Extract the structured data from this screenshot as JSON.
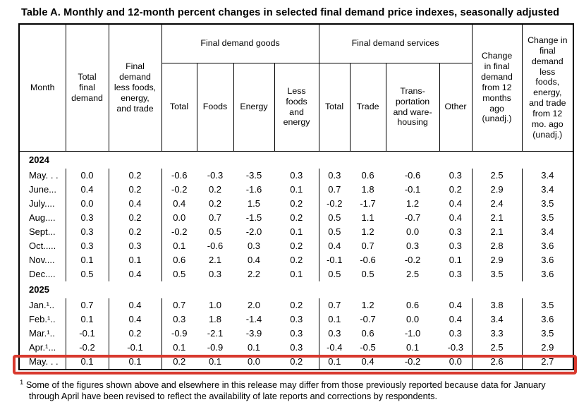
{
  "title": "Table A. Monthly and 12-month percent changes in selected final demand price indexes, seasonally adjusted",
  "colors": {
    "highlight_border": "#d8392e"
  },
  "table": {
    "header": {
      "month": "Month",
      "total_final_demand": "Total final demand",
      "less_fet": "Final demand less foods, energy, and trade",
      "goods": {
        "label": "Final demand goods",
        "sub": [
          "Total",
          "Foods",
          "Energy",
          "Less foods and energy"
        ]
      },
      "services": {
        "label": "Final demand services",
        "sub": [
          "Total",
          "Trade",
          "Trans-portation and ware-housing",
          "Other"
        ]
      },
      "change_12mo": "Change in final demand from 12 months ago (unadj.)",
      "change_less_12mo": "Change in final demand less foods, energy, and trade from 12 mo. ago (unadj.)"
    },
    "sections": [
      {
        "year": "2024",
        "rows": [
          {
            "month": "May. . .",
            "values": [
              "0.0",
              "0.2",
              "-0.6",
              "-0.3",
              "-3.5",
              "0.3",
              "0.3",
              "0.6",
              "-0.6",
              "0.3",
              "2.5",
              "3.4"
            ],
            "highlighted": false
          },
          {
            "month": "June...",
            "values": [
              "0.4",
              "0.2",
              "-0.2",
              "0.2",
              "-1.6",
              "0.1",
              "0.7",
              "1.8",
              "-0.1",
              "0.2",
              "2.9",
              "3.4"
            ],
            "highlighted": false
          },
          {
            "month": "July....",
            "values": [
              "0.0",
              "0.4",
              "0.4",
              "0.2",
              "1.5",
              "0.2",
              "-0.2",
              "-1.7",
              "1.2",
              "0.4",
              "2.4",
              "3.5"
            ],
            "highlighted": false
          },
          {
            "month": "Aug....",
            "values": [
              "0.3",
              "0.2",
              "0.0",
              "0.7",
              "-1.5",
              "0.2",
              "0.5",
              "1.1",
              "-0.7",
              "0.4",
              "2.1",
              "3.5"
            ],
            "highlighted": false
          },
          {
            "month": "Sept...",
            "values": [
              "0.3",
              "0.2",
              "-0.2",
              "0.5",
              "-2.0",
              "0.1",
              "0.5",
              "1.2",
              "0.0",
              "0.3",
              "2.1",
              "3.4"
            ],
            "highlighted": false
          },
          {
            "month": "Oct.....",
            "values": [
              "0.3",
              "0.3",
              "0.1",
              "-0.6",
              "0.3",
              "0.2",
              "0.4",
              "0.7",
              "0.3",
              "0.3",
              "2.8",
              "3.6"
            ],
            "highlighted": false
          },
          {
            "month": "Nov....",
            "values": [
              "0.1",
              "0.1",
              "0.6",
              "2.1",
              "0.4",
              "0.2",
              "-0.1",
              "-0.6",
              "-0.2",
              "0.1",
              "2.9",
              "3.6"
            ],
            "highlighted": false
          },
          {
            "month": "Dec....",
            "values": [
              "0.5",
              "0.4",
              "0.5",
              "0.3",
              "2.2",
              "0.1",
              "0.5",
              "0.5",
              "2.5",
              "0.3",
              "3.5",
              "3.6"
            ],
            "highlighted": false
          }
        ]
      },
      {
        "year": "2025",
        "rows": [
          {
            "month": "Jan.¹..",
            "values": [
              "0.7",
              "0.4",
              "0.7",
              "1.0",
              "2.0",
              "0.2",
              "0.7",
              "1.2",
              "0.6",
              "0.4",
              "3.8",
              "3.5"
            ],
            "highlighted": false
          },
          {
            "month": "Feb.¹..",
            "values": [
              "0.1",
              "0.4",
              "0.3",
              "1.8",
              "-1.4",
              "0.3",
              "0.1",
              "-0.7",
              "0.0",
              "0.4",
              "3.4",
              "3.6"
            ],
            "highlighted": false
          },
          {
            "month": "Mar.¹..",
            "values": [
              "-0.1",
              "0.2",
              "-0.9",
              "-2.1",
              "-3.9",
              "0.3",
              "0.3",
              "0.6",
              "-1.0",
              "0.3",
              "3.3",
              "3.5"
            ],
            "highlighted": false
          },
          {
            "month": "Apr.¹...",
            "values": [
              "-0.2",
              "-0.1",
              "0.1",
              "-0.9",
              "0.1",
              "0.3",
              "-0.4",
              "-0.5",
              "0.1",
              "-0.3",
              "2.5",
              "2.9"
            ],
            "highlighted": false
          },
          {
            "month": "May. . .",
            "values": [
              "0.1",
              "0.1",
              "0.2",
              "0.1",
              "0.0",
              "0.2",
              "0.1",
              "0.4",
              "-0.2",
              "0.0",
              "2.6",
              "2.7"
            ],
            "highlighted": true
          }
        ]
      }
    ]
  },
  "footnote": {
    "marker": "1",
    "text": "Some of the figures shown above and elsewhere in this release may differ from those previously reported because data for January through April have been revised to reflect the availability of late reports and corrections by respondents."
  }
}
